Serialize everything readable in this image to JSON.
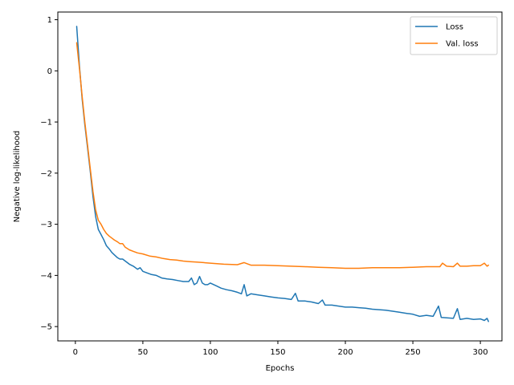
{
  "chart_data": {
    "type": "line",
    "title": "",
    "xlabel": "Epochs",
    "ylabel": "Negative log-likelihood",
    "xlim": [
      -13,
      316
    ],
    "ylim": [
      -5.28,
      1.15
    ],
    "xticks": [
      0,
      50,
      100,
      150,
      200,
      250,
      300
    ],
    "yticks": [
      1,
      0,
      -1,
      -2,
      -3,
      -4,
      -5
    ],
    "grid": false,
    "legend_position": "top-right",
    "series": [
      {
        "name": "Loss",
        "color": "#1f77b4",
        "x": [
          1,
          3,
          5,
          7,
          9,
          11,
          13,
          15,
          17,
          19,
          21,
          23,
          25,
          27,
          29,
          31,
          33,
          35,
          37,
          40,
          43,
          46,
          48,
          50,
          53,
          56,
          60,
          64,
          68,
          72,
          76,
          80,
          84,
          86,
          88,
          90,
          92,
          94,
          96,
          98,
          100,
          104,
          108,
          112,
          116,
          120,
          123,
          125,
          127,
          130,
          135,
          140,
          145,
          150,
          155,
          160,
          163,
          165,
          170,
          175,
          180,
          183,
          185,
          190,
          195,
          200,
          205,
          210,
          215,
          220,
          225,
          230,
          235,
          240,
          245,
          250,
          255,
          260,
          265,
          269,
          271,
          275,
          280,
          283,
          285,
          290,
          295,
          300,
          303,
          305,
          306
        ],
        "y": [
          0.87,
          0.1,
          -0.55,
          -1.05,
          -1.5,
          -1.95,
          -2.45,
          -2.85,
          -3.1,
          -3.2,
          -3.3,
          -3.42,
          -3.48,
          -3.55,
          -3.6,
          -3.65,
          -3.68,
          -3.68,
          -3.72,
          -3.78,
          -3.82,
          -3.88,
          -3.85,
          -3.92,
          -3.95,
          -3.98,
          -4.0,
          -4.05,
          -4.07,
          -4.08,
          -4.1,
          -4.12,
          -4.12,
          -4.05,
          -4.18,
          -4.15,
          -4.02,
          -4.15,
          -4.18,
          -4.18,
          -4.15,
          -4.2,
          -4.25,
          -4.28,
          -4.3,
          -4.33,
          -4.36,
          -4.18,
          -4.4,
          -4.36,
          -4.38,
          -4.4,
          -4.42,
          -4.44,
          -4.45,
          -4.47,
          -4.35,
          -4.5,
          -4.5,
          -4.52,
          -4.55,
          -4.48,
          -4.58,
          -4.58,
          -4.6,
          -4.62,
          -4.62,
          -4.63,
          -4.64,
          -4.66,
          -4.67,
          -4.68,
          -4.7,
          -4.72,
          -4.74,
          -4.76,
          -4.8,
          -4.78,
          -4.8,
          -4.6,
          -4.82,
          -4.83,
          -4.84,
          -4.65,
          -4.86,
          -4.84,
          -4.86,
          -4.85,
          -4.88,
          -4.84,
          -4.9
        ]
      },
      {
        "name": "Val. loss",
        "color": "#ff7f0e",
        "x": [
          1,
          3,
          5,
          7,
          9,
          11,
          13,
          15,
          17,
          19,
          21,
          23,
          25,
          27,
          29,
          31,
          33,
          35,
          37,
          40,
          43,
          46,
          50,
          55,
          60,
          65,
          70,
          75,
          80,
          85,
          90,
          95,
          100,
          110,
          120,
          125,
          130,
          140,
          150,
          160,
          170,
          180,
          190,
          200,
          210,
          220,
          230,
          240,
          250,
          260,
          270,
          272,
          275,
          280,
          283,
          285,
          290,
          295,
          300,
          303,
          305,
          306
        ],
        "y": [
          0.55,
          0.05,
          -0.5,
          -1.0,
          -1.45,
          -1.9,
          -2.35,
          -2.72,
          -2.92,
          -3.0,
          -3.1,
          -3.18,
          -3.23,
          -3.27,
          -3.31,
          -3.34,
          -3.38,
          -3.38,
          -3.45,
          -3.5,
          -3.53,
          -3.56,
          -3.58,
          -3.62,
          -3.64,
          -3.67,
          -3.69,
          -3.7,
          -3.72,
          -3.73,
          -3.74,
          -3.75,
          -3.76,
          -3.78,
          -3.79,
          -3.75,
          -3.8,
          -3.8,
          -3.81,
          -3.82,
          -3.83,
          -3.84,
          -3.85,
          -3.86,
          -3.86,
          -3.85,
          -3.85,
          -3.85,
          -3.84,
          -3.83,
          -3.83,
          -3.76,
          -3.82,
          -3.83,
          -3.76,
          -3.82,
          -3.82,
          -3.81,
          -3.81,
          -3.76,
          -3.82,
          -3.8
        ]
      }
    ]
  }
}
